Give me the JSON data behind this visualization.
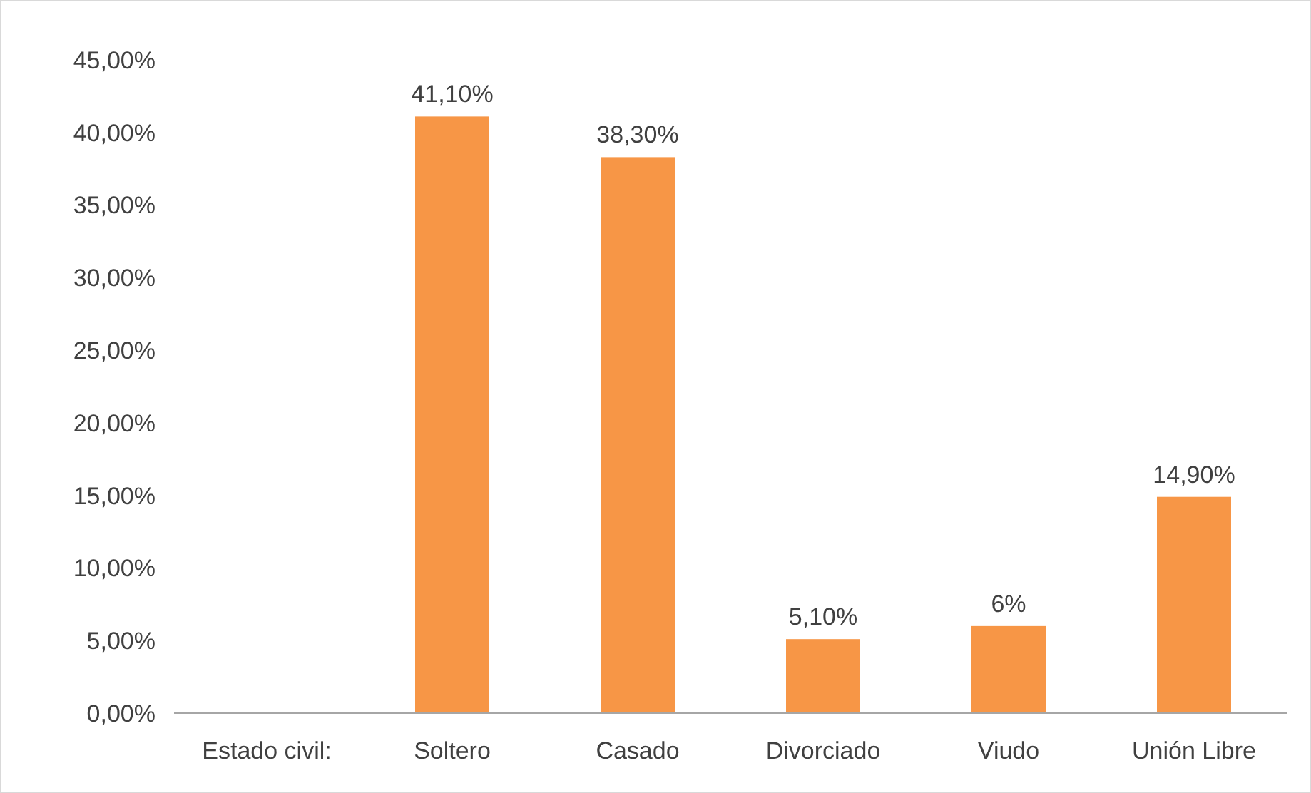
{
  "chart_data": {
    "type": "bar",
    "xlabel": "Estado civil:",
    "categories": [
      null,
      "Soltero",
      "Casado",
      "Divorciado",
      "Viudo",
      "Unión Libre"
    ],
    "values": [
      null,
      41.1,
      38.3,
      5.1,
      6,
      14.9
    ],
    "value_labels": [
      null,
      "41,10%",
      "38,30%",
      "5,10%",
      "6%",
      "14,90%"
    ],
    "color": "#f79646",
    "ylim": [
      0,
      45
    ],
    "yticks": [
      {
        "value": 0,
        "label": "0,00%"
      },
      {
        "value": 5,
        "label": "5,00%"
      },
      {
        "value": 10,
        "label": "10,00%"
      },
      {
        "value": 15,
        "label": "15,00%"
      },
      {
        "value": 20,
        "label": "20,00%"
      },
      {
        "value": 25,
        "label": "25,00%"
      },
      {
        "value": 30,
        "label": "30,00%"
      },
      {
        "value": 35,
        "label": "35,00%"
      },
      {
        "value": 40,
        "label": "40,00%"
      },
      {
        "value": 45,
        "label": "45,00%"
      }
    ],
    "grid": false
  }
}
